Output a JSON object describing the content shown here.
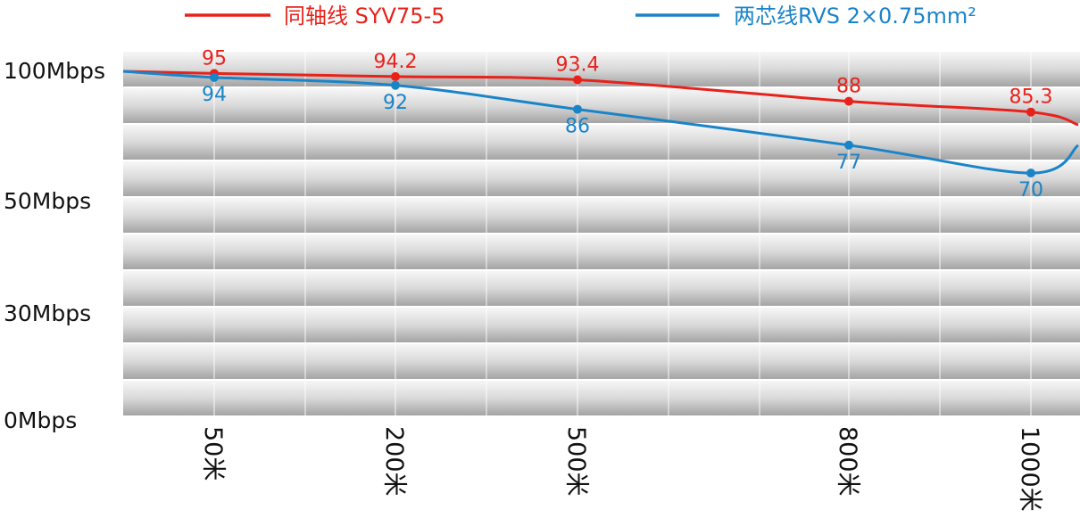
{
  "chart_data": {
    "type": "line",
    "categories": [
      "50米",
      "200米",
      "500米",
      "800米",
      "1000米"
    ],
    "series": [
      {
        "name": "同轴线 SYV75-5",
        "color": "#e8221b",
        "values": [
          95,
          94.2,
          93.4,
          88,
          85.3
        ],
        "data_labels": [
          "95",
          "94.2",
          "93.4",
          "88",
          "85.3"
        ]
      },
      {
        "name": "两芯线RVS 2×0.75mm²",
        "color": "#1a84c8",
        "values": [
          94,
          92,
          86,
          77,
          70
        ],
        "data_labels": [
          "94",
          "92",
          "86",
          "77",
          "70"
        ]
      }
    ],
    "y_tick_labels": [
      "100Mbps",
      "50Mbps",
      "30Mbps",
      "0Mbps"
    ],
    "xlabel": "",
    "ylabel": "",
    "grid": true,
    "legend": "top"
  }
}
